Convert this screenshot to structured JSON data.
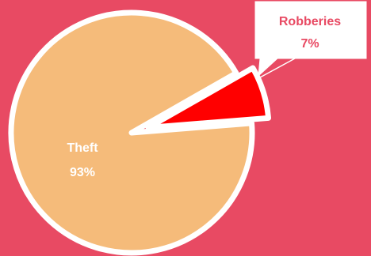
{
  "chart_data": {
    "type": "pie",
    "categories": [
      "Theft",
      "Robberies"
    ],
    "values": [
      93,
      7
    ],
    "labels": [
      "93%",
      "7%"
    ],
    "colors": [
      "#f5bb7a",
      "#ff0000"
    ],
    "exploded": [
      false,
      true
    ],
    "title": ""
  },
  "colors": {
    "background": "#e84a63",
    "slice_stroke": "#ffffff",
    "callout_border": "#ffffff"
  }
}
